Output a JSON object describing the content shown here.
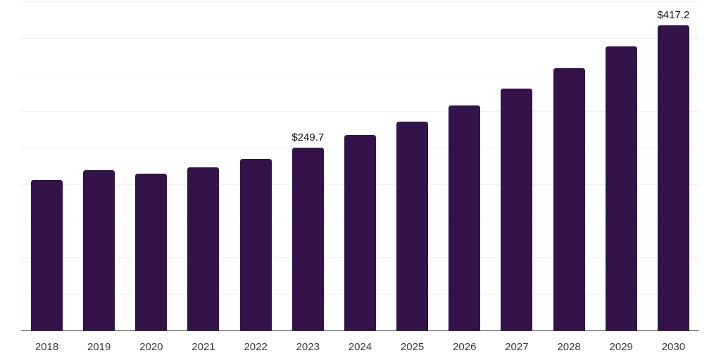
{
  "chart_data": {
    "type": "bar",
    "categories": [
      "2018",
      "2019",
      "2020",
      "2021",
      "2022",
      "2023",
      "2024",
      "2025",
      "2026",
      "2027",
      "2028",
      "2029",
      "2030"
    ],
    "values": [
      206,
      219,
      214,
      223,
      235,
      249.7,
      267,
      286,
      308,
      331,
      359,
      388,
      417.2
    ],
    "data_labels": {
      "2023": "$249.7",
      "2030": "$417.2"
    },
    "title": "",
    "xlabel": "",
    "ylabel": "",
    "ylim": [
      0,
      450
    ],
    "grid_step": 50,
    "grid": "horizontal-only",
    "legend": "none",
    "currency_prefix": "$",
    "bar_color": "#33124a",
    "gridline_color": "#f0eff2",
    "axis_line_color": "#3c3c3c",
    "tick_label_color": "#3a3a3a",
    "value_label_color": "#111111"
  }
}
